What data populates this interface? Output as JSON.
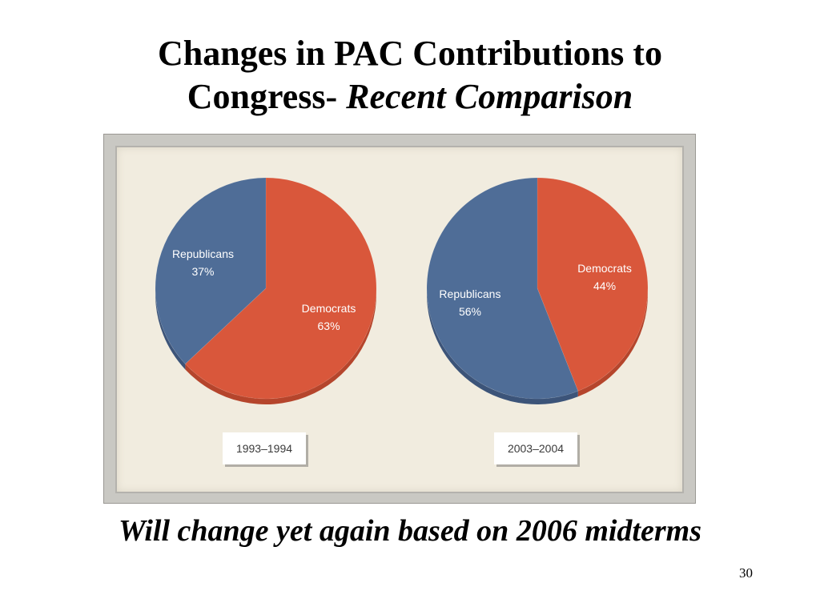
{
  "slide": {
    "title_line1": "Changes in PAC Contributions to",
    "title_line2_prefix": "Congress- ",
    "title_line2_italic": "Recent Comparison",
    "footnote": "Will change yet again based on 2006 midterms",
    "page_number": "30"
  },
  "colors": {
    "republicans": "#4f6d97",
    "republicans_side": "#3c5479",
    "democrats": "#d9573b",
    "democrats_side": "#b5452c"
  },
  "chart_data": [
    {
      "type": "pie",
      "period": "1993–1994",
      "slices": [
        {
          "label": "Republicans",
          "percent_label": "37%",
          "value": 37
        },
        {
          "label": "Democrats",
          "percent_label": "63%",
          "value": 63
        }
      ]
    },
    {
      "type": "pie",
      "period": "2003–2004",
      "slices": [
        {
          "label": "Republicans",
          "percent_label": "56%",
          "value": 56
        },
        {
          "label": "Democrats",
          "percent_label": "44%",
          "value": 44
        }
      ]
    }
  ]
}
